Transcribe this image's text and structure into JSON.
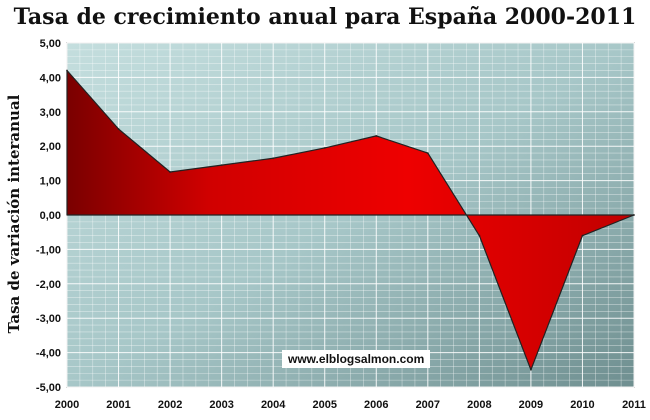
{
  "chart_data": {
    "type": "area",
    "title": "Tasa de crecimiento anual para España 2000-2011",
    "ylabel": "Tasa de variación interanual",
    "xlabel": "",
    "x": [
      2000,
      2001,
      2002,
      2003,
      2004,
      2005,
      2006,
      2007,
      2008,
      2009,
      2010,
      2011
    ],
    "x_tick_labels": [
      "2000",
      "2001",
      "2002",
      "2003",
      "2004",
      "2005",
      "2006",
      "2007",
      "2008",
      "2009",
      "2010",
      "2011"
    ],
    "values": [
      4.2,
      2.5,
      1.25,
      1.45,
      1.65,
      1.95,
      2.3,
      1.8,
      -0.6,
      -4.5,
      -0.6,
      0.0
    ],
    "ylim": [
      -5,
      5
    ],
    "y_ticks": [
      5,
      4,
      3,
      2,
      1,
      0,
      -1,
      -2,
      -3,
      -4,
      -5
    ],
    "y_tick_labels": [
      "5,00",
      "4,00",
      "3,00",
      "2,00",
      "1,00",
      "0,00",
      "-1,00",
      "-2,00",
      "-3,00",
      "-4,00",
      "-5,00"
    ],
    "grid": true,
    "colors": {
      "fill": "#e00000",
      "fill_dark": "#7a0000",
      "background": "#a9c8c8",
      "grid": "#ffffff"
    }
  },
  "watermark": "www.elblogsalmon.com"
}
